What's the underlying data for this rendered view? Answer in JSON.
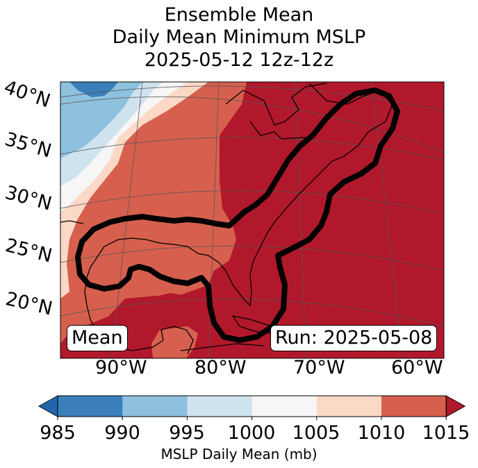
{
  "title": {
    "line1": "Ensemble Mean",
    "line2": "Daily Mean Minimum MSLP",
    "line3": "2025-05-12 12z-12z"
  },
  "map": {
    "lat_labels": [
      "40°N",
      "35°N",
      "30°N",
      "25°N",
      "20°N"
    ],
    "lon_labels": [
      "90°W",
      "80°W",
      "70°W",
      "60°W"
    ],
    "inset_left": "Mean",
    "inset_right": "Run: 2025-05-08",
    "colors": {
      "985": "#3a7fba",
      "990": "#8ec1de",
      "995": "#cfe3ef",
      "1000": "#f6f6f6",
      "1005": "#fcd8c6",
      "1010": "#d6604d",
      "1015": "#b2182b"
    }
  },
  "colorbar": {
    "ticks": [
      "985",
      "990",
      "995",
      "1000",
      "1005",
      "1010",
      "1015"
    ],
    "colors": [
      "#3a7fba",
      "#8ec1de",
      "#cfe3ef",
      "#f6f6f6",
      "#fcd8c6",
      "#d6604d"
    ],
    "under_color": "#2166ac",
    "over_color": "#b2182b",
    "label": "MSLP Daily Mean (mb)"
  }
}
